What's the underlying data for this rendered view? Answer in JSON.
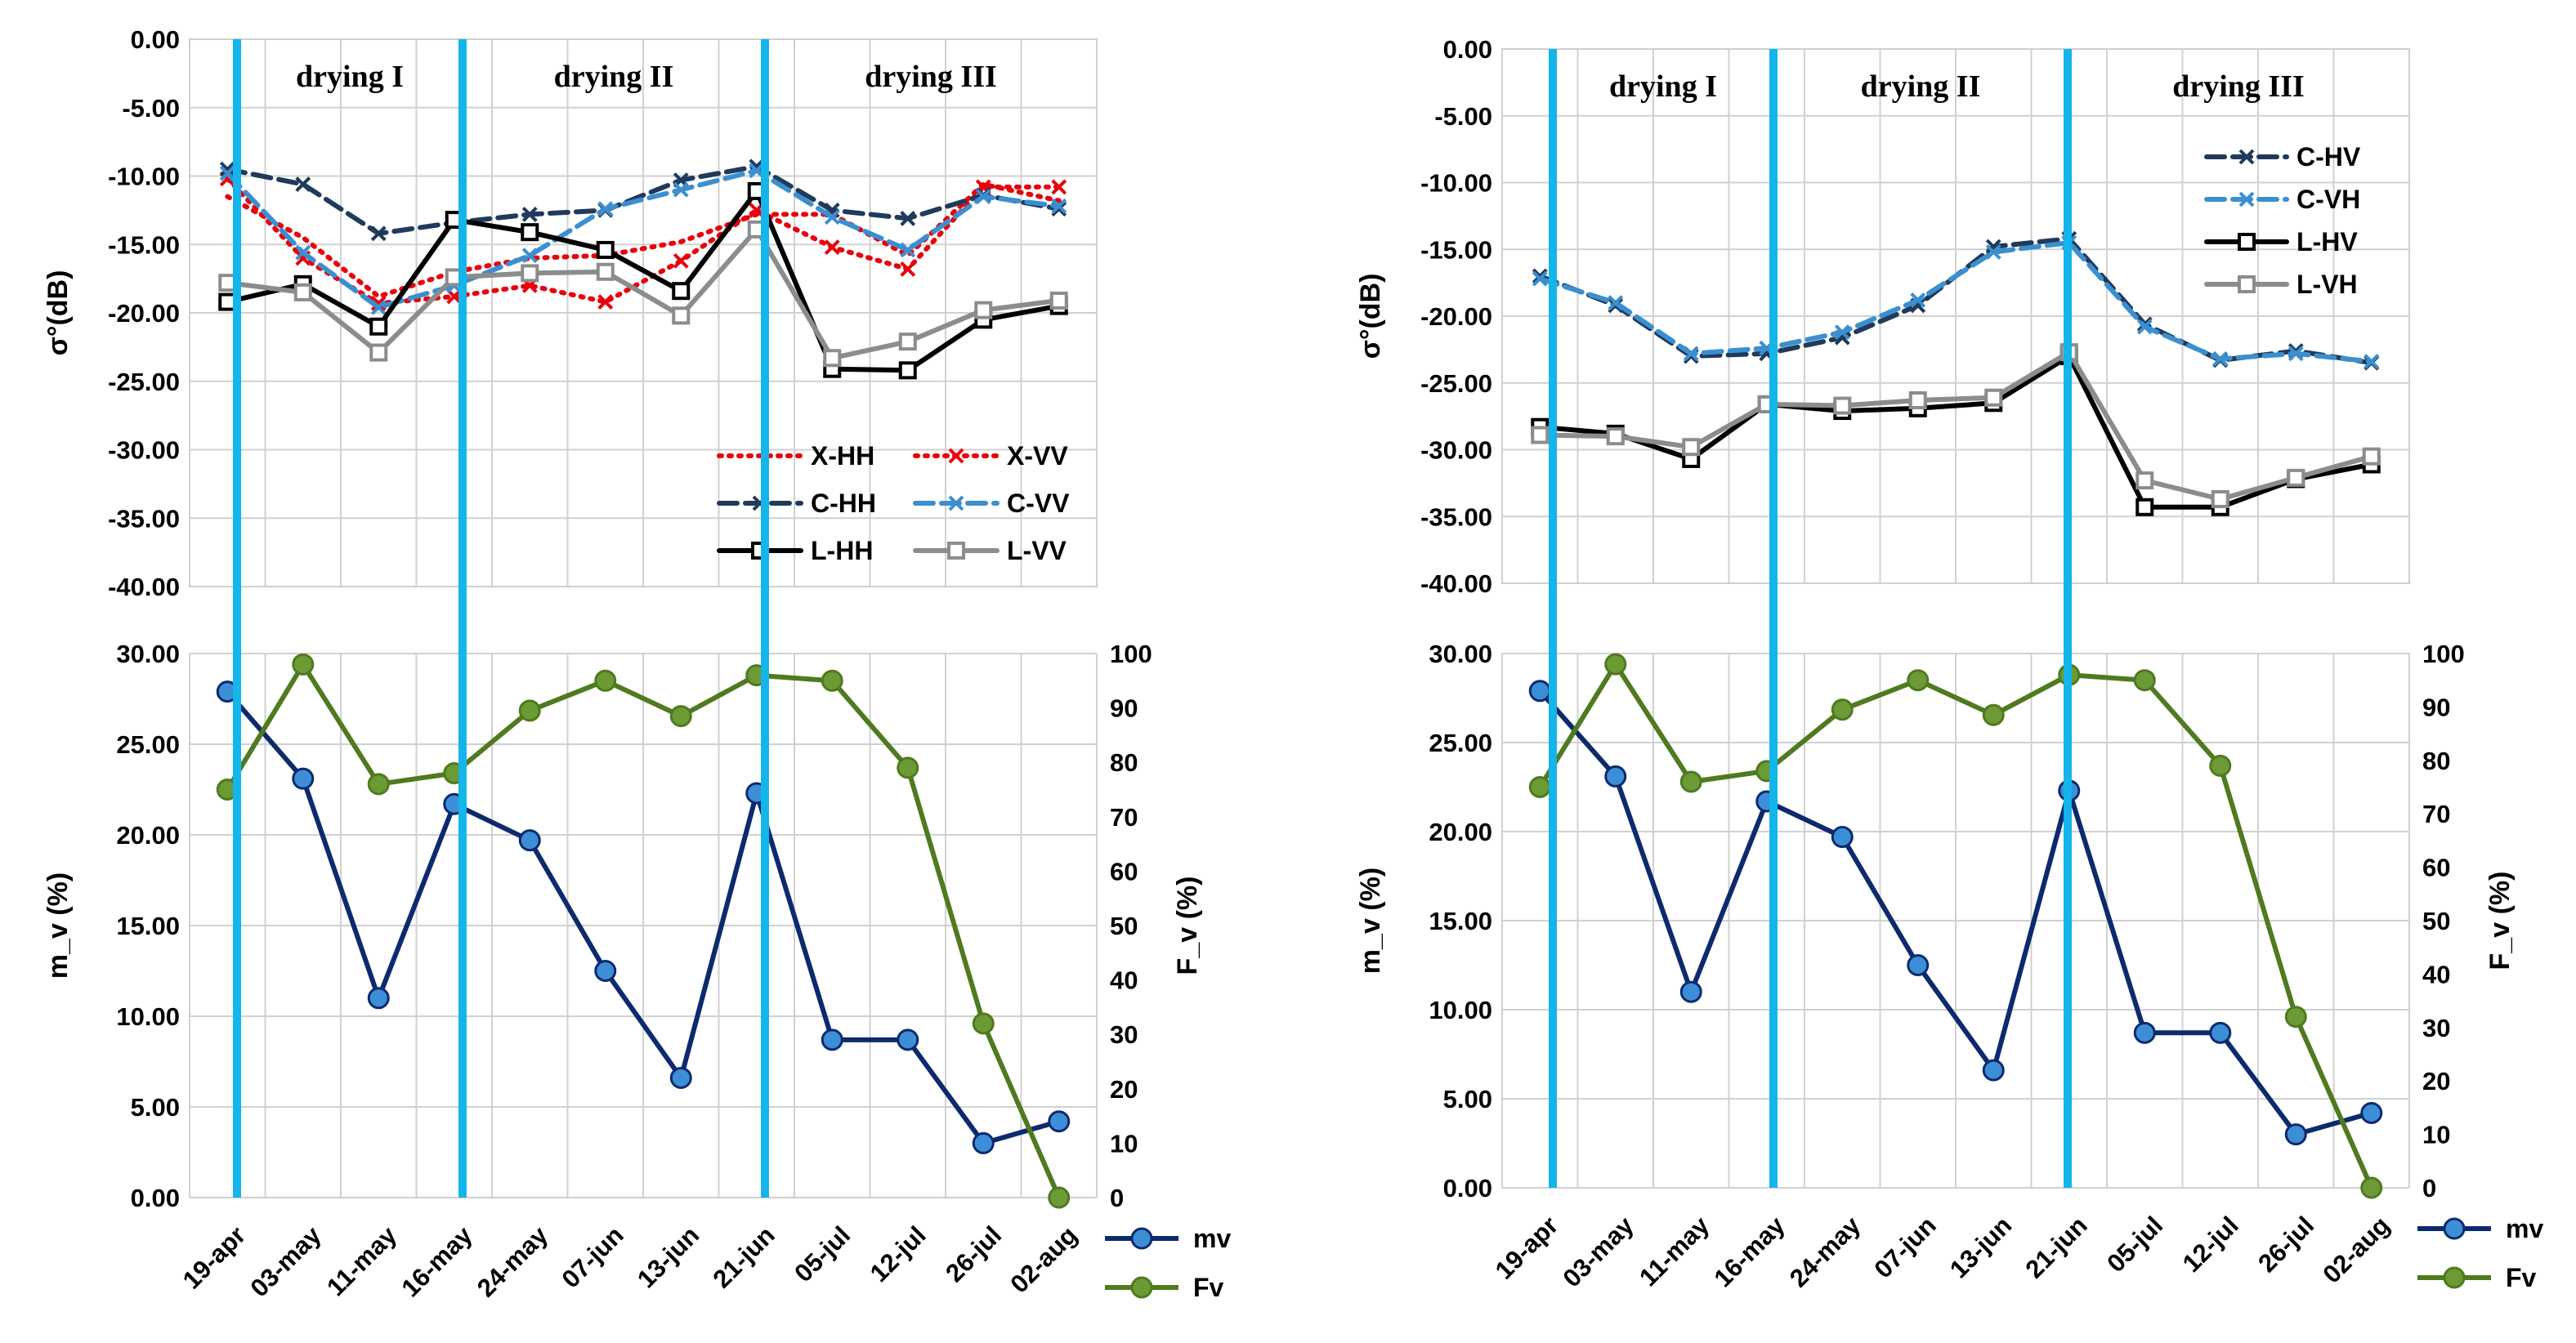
{
  "categories": [
    "19-apr",
    "03-may",
    "11-may",
    "16-may",
    "24-may",
    "07-jun",
    "13-jun",
    "21-jun",
    "05-jul",
    "12-jul",
    "26-jul",
    "02-aug"
  ],
  "chart_data": [
    {
      "type": "line",
      "title": "",
      "ylabel": "σ°(dB)",
      "ylim": [
        -40,
        0
      ],
      "yticks": [
        "0.00",
        "-5.00",
        "-10.00",
        "-15.00",
        "-20.00",
        "-25.00",
        "-30.00",
        "-35.00",
        "-40.00"
      ],
      "grid": true,
      "periods": [
        "drying I",
        "drying II",
        "drying III"
      ],
      "legend_position": "bottom-right",
      "series": [
        {
          "name": "X-HH",
          "color": "#e8000b",
          "style": "dotted",
          "marker": "none",
          "values": [
            -11.5,
            -14.5,
            -18.8,
            -17.0,
            -16.0,
            -15.8,
            -14.8,
            -12.8,
            -12.8,
            -15.8,
            -10.6,
            -11.8
          ]
        },
        {
          "name": "X-VV",
          "color": "#e8000b",
          "style": "dotted-cross",
          "marker": "cross",
          "values": [
            -10.2,
            -16.0,
            -19.3,
            -18.8,
            -18.0,
            -19.2,
            -16.2,
            -12.5,
            -15.2,
            -16.8,
            -10.8,
            -10.8
          ]
        },
        {
          "name": "C-HH",
          "color": "#203a5c",
          "style": "dashed",
          "marker": "cross",
          "values": [
            -9.5,
            -10.6,
            -14.2,
            -13.4,
            -12.8,
            -12.5,
            -10.3,
            -9.3,
            -12.5,
            -13.1,
            -11.4,
            -12.4
          ]
        },
        {
          "name": "C-VV",
          "color": "#3a8fd0",
          "style": "dashed",
          "marker": "cross",
          "values": [
            -9.8,
            -15.6,
            -19.6,
            -18.0,
            -15.8,
            -12.4,
            -11.0,
            -9.6,
            -13.0,
            -15.4,
            -11.5,
            -12.2
          ]
        },
        {
          "name": "L-HH",
          "color": "#000000",
          "style": "solid",
          "marker": "square",
          "values": [
            -19.2,
            -17.9,
            -21.0,
            -13.2,
            -14.1,
            -15.4,
            -18.4,
            -11.1,
            -24.1,
            -24.2,
            -20.5,
            -19.5
          ]
        },
        {
          "name": "L-VV",
          "color": "#8c8c8c",
          "style": "solid",
          "marker": "square",
          "values": [
            -17.8,
            -18.5,
            -22.9,
            -17.4,
            -17.1,
            -17.0,
            -20.2,
            -13.9,
            -23.3,
            -22.1,
            -19.8,
            -19.1
          ]
        }
      ]
    },
    {
      "type": "line",
      "title": "",
      "ylabel": "σ°(dB)",
      "ylim": [
        -40,
        0
      ],
      "yticks": [
        "0.00",
        "-5.00",
        "-10.00",
        "-15.00",
        "-20.00",
        "-25.00",
        "-30.00",
        "-35.00",
        "-40.00"
      ],
      "grid": true,
      "periods": [
        "drying I",
        "drying II",
        "drying III"
      ],
      "legend_position": "top-right",
      "series": [
        {
          "name": "C-HV",
          "color": "#203a5c",
          "style": "dashed",
          "marker": "cross",
          "values": [
            -17.0,
            -19.2,
            -23.0,
            -22.8,
            -21.6,
            -19.2,
            -14.8,
            -14.2,
            -20.6,
            -23.3,
            -22.6,
            -23.5
          ]
        },
        {
          "name": "C-VH",
          "color": "#3a8fd0",
          "style": "dashed",
          "marker": "cross",
          "values": [
            -17.2,
            -19.0,
            -22.8,
            -22.4,
            -21.2,
            -18.8,
            -15.2,
            -14.5,
            -20.8,
            -23.2,
            -22.8,
            -23.4
          ]
        },
        {
          "name": "L-HV",
          "color": "#000000",
          "style": "solid",
          "marker": "square",
          "values": [
            -28.3,
            -28.8,
            -30.7,
            -26.6,
            -27.1,
            -26.9,
            -26.5,
            -23.0,
            -34.3,
            -34.3,
            -32.2,
            -31.1
          ]
        },
        {
          "name": "L-VH",
          "color": "#8c8c8c",
          "style": "solid",
          "marker": "square",
          "values": [
            -28.9,
            -29.0,
            -29.8,
            -26.6,
            -26.7,
            -26.3,
            -26.1,
            -22.7,
            -32.3,
            -33.7,
            -32.1,
            -30.5
          ]
        }
      ]
    },
    {
      "type": "line",
      "title": "",
      "ylabel": "m_v (%)",
      "y2label": "F_v (%)",
      "ylim": [
        0,
        30
      ],
      "y2lim": [
        0,
        100
      ],
      "yticks": [
        "30.00",
        "25.00",
        "20.00",
        "15.00",
        "10.00",
        "5.00",
        "0.00"
      ],
      "y2ticks": [
        "100",
        "90",
        "80",
        "70",
        "60",
        "50",
        "40",
        "30",
        "20",
        "10",
        "0"
      ],
      "grid": true,
      "legend_position": "bottom-right",
      "series": [
        {
          "name": "mv",
          "axis": "left",
          "color": "#0d2a6e",
          "marker_fill": "#3c8fd6",
          "values": [
            27.9,
            23.1,
            11.0,
            21.7,
            19.7,
            12.5,
            6.6,
            22.3,
            8.7,
            8.7,
            3.0,
            4.2
          ]
        },
        {
          "name": "Fv",
          "axis": "right",
          "color": "#4f7a1f",
          "marker_fill": "#6c9a34",
          "values": [
            75,
            98,
            76,
            78,
            89.5,
            95,
            88.5,
            96,
            95,
            79,
            32,
            0
          ]
        }
      ]
    },
    {
      "type": "line",
      "title": "",
      "ylabel": "m_v (%)",
      "y2label": "F_v (%)",
      "ylim": [
        0,
        30
      ],
      "y2lim": [
        0,
        100
      ],
      "yticks": [
        "30.00",
        "25.00",
        "20.00",
        "15.00",
        "10.00",
        "5.00",
        "0.00"
      ],
      "y2ticks": [
        "100",
        "90",
        "80",
        "70",
        "60",
        "50",
        "40",
        "30",
        "20",
        "10",
        "0"
      ],
      "grid": true,
      "legend_position": "bottom-right",
      "series": [
        {
          "name": "mv",
          "axis": "left",
          "color": "#0d2a6e",
          "marker_fill": "#3c8fd6",
          "values": [
            27.9,
            23.1,
            11.0,
            21.7,
            19.7,
            12.5,
            6.6,
            22.3,
            8.7,
            8.7,
            3.0,
            4.2
          ]
        },
        {
          "name": "Fv",
          "axis": "right",
          "color": "#4f7a1f",
          "marker_fill": "#6c9a34",
          "values": [
            75,
            98,
            76,
            78,
            89.5,
            95,
            88.5,
            96,
            95,
            79,
            32,
            0
          ]
        }
      ]
    }
  ]
}
